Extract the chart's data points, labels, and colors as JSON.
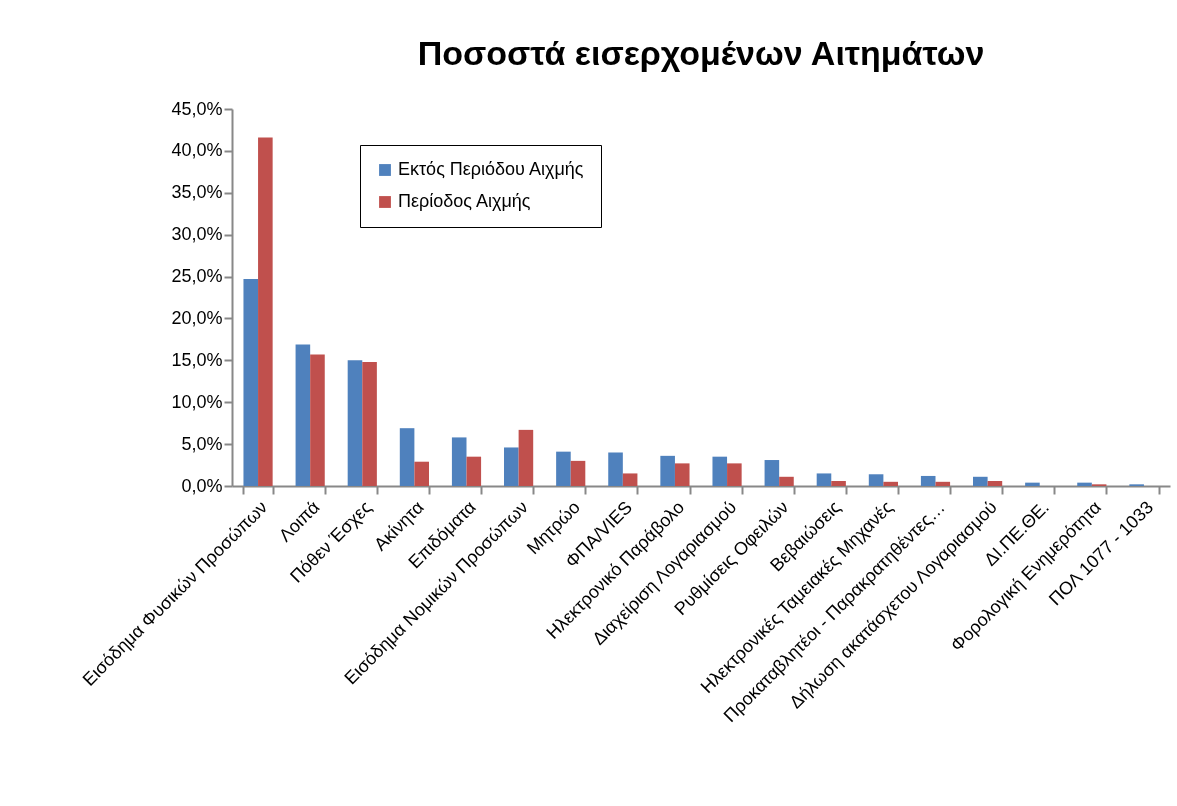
{
  "chart_data": {
    "type": "bar",
    "title": "Ποσοστά εισερχομένων Αιτημάτων",
    "categories": [
      "Εισόδημα Φυσικών Προσώπων",
      "Λοιπά",
      "Πόθεν Έσχες",
      "Ακίνητα",
      "Επιδόματα",
      "Εισόδημα Νομικών Προσώπων",
      "Μητρώο",
      "ΦΠΑ/VIES",
      "Ηλεκτρονικό Παράβολο",
      "Διαχείριση Λογαριασμού",
      "Ρυθμίσεις Οφειλών",
      "Βεβαιώσεις",
      "Ηλεκτρονικές Ταμειακές Μηχανές",
      "Προκαταβλητέοι - Παρακρατηθέντες…",
      "Δήλωση ακατάσχετου Λογαριασμού",
      "ΔΙ.ΠΕ.ΘΕ.",
      "Φορολογική Ενημερότητα",
      "ΠΟΛ 1077 - 1033"
    ],
    "series": [
      {
        "name": "Εκτός Περιόδου Αιχμής",
        "color": "#4f81bd",
        "values": [
          24.7,
          16.9,
          15.0,
          6.9,
          5.8,
          4.6,
          4.1,
          4.0,
          3.6,
          3.5,
          3.1,
          1.5,
          1.4,
          1.2,
          1.1,
          0.4,
          0.4,
          0.2
        ]
      },
      {
        "name": "Περίοδος Αιχμής",
        "color": "#c0504d",
        "values": [
          41.6,
          15.7,
          14.8,
          2.9,
          3.5,
          6.7,
          3.0,
          1.5,
          2.7,
          2.7,
          1.1,
          0.6,
          0.5,
          0.5,
          0.6,
          0.0,
          0.2,
          0.0
        ]
      }
    ],
    "ylim": [
      0,
      45
    ],
    "yticks": [
      {
        "value": 0,
        "label": "0,0%"
      },
      {
        "value": 5,
        "label": "5,0%"
      },
      {
        "value": 10,
        "label": "10,0%"
      },
      {
        "value": 15,
        "label": "15,0%"
      },
      {
        "value": 20,
        "label": "20,0%"
      },
      {
        "value": 25,
        "label": "25,0%"
      },
      {
        "value": 30,
        "label": "30,0%"
      },
      {
        "value": 35,
        "label": "35,0%"
      },
      {
        "value": 40,
        "label": "40,0%"
      },
      {
        "value": 45,
        "label": "45,0%"
      }
    ],
    "grid": false,
    "legend": "top"
  }
}
